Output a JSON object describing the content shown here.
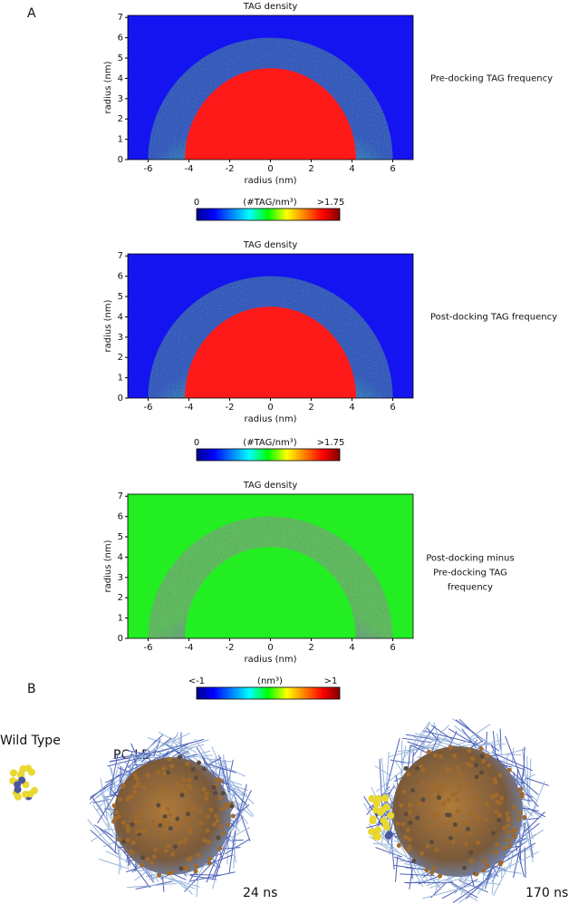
{
  "label_a": "A",
  "label_b": "B",
  "panels": [
    {
      "title": "TAG density",
      "xlabel": "radius (nm)",
      "ylabel": "radius (nm)",
      "side_label": [
        "Pre-docking TAG frequency"
      ],
      "xlim": [
        -7,
        7
      ],
      "ylim": [
        0,
        7.1
      ],
      "xticks": [
        -6,
        -4,
        -2,
        0,
        2,
        4,
        6
      ],
      "yticks": [
        0,
        1,
        2,
        3,
        4,
        5,
        6,
        7
      ],
      "colorbar": {
        "min_label": "0",
        "unit": "(#TAG/nm³)",
        "max_label": ">1.75"
      }
    },
    {
      "title": "TAG density",
      "xlabel": "radius (nm)",
      "ylabel": "radius (nm)",
      "side_label": [
        "Post-docking TAG frequency"
      ],
      "xlim": [
        -7,
        7
      ],
      "ylim": [
        0,
        7.1
      ],
      "xticks": [
        -6,
        -4,
        -2,
        0,
        2,
        4,
        6
      ],
      "yticks": [
        0,
        1,
        2,
        3,
        4,
        5,
        6,
        7
      ],
      "colorbar": {
        "min_label": "0",
        "unit": "(#TAG/nm³)",
        "max_label": ">1.75"
      }
    },
    {
      "title": "TAG density",
      "xlabel": "radius (nm)",
      "ylabel": "radius (nm)",
      "side_label": [
        "Post-docking minus",
        "Pre-docking TAG",
        "frequency"
      ],
      "xlim": [
        -7,
        7
      ],
      "ylim": [
        0,
        7.1
      ],
      "xticks": [
        -6,
        -4,
        -2,
        0,
        2,
        4,
        6
      ],
      "yticks": [
        0,
        1,
        2,
        3,
        4,
        5,
        6,
        7
      ],
      "colorbar": {
        "min_label": "<-1",
        "unit": "(nm³)",
        "max_label": ">1"
      }
    }
  ],
  "molecules": {
    "wild_type": "Wild Type",
    "pc_ld": "PC-LD",
    "time_1": "24 ns",
    "time_2": "170 ns"
  }
}
